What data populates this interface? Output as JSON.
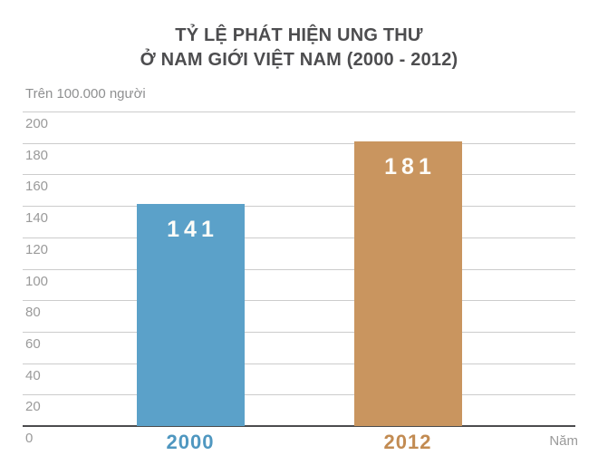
{
  "chart_data": {
    "type": "bar",
    "title_lines": [
      "TỶ LỆ PHÁT HIỆN UNG THƯ",
      "Ở NAM GIỚI VIỆT NAM (2000 - 2012)"
    ],
    "unit_label": "Trên 100.000 người",
    "xlabel": "Năm",
    "categories": [
      "2000",
      "2012"
    ],
    "values": [
      141,
      181
    ],
    "ylim": [
      0,
      200
    ],
    "ytick_step": 20,
    "yticks": [
      0,
      20,
      40,
      60,
      80,
      100,
      120,
      140,
      160,
      180,
      200
    ],
    "grid": true,
    "legend": false,
    "bar_colors": [
      "#5ba1c9",
      "#c9955f"
    ],
    "category_label_colors": [
      "#4f97c0",
      "#c28b52"
    ],
    "value_label_color": "#fdfcf8"
  },
  "colors": {
    "title": "#4d4d4f",
    "axis_text": "#9a9a9a",
    "unit_text": "#8f9091",
    "gridline": "#cccccc",
    "baseline": "#4c4c4e",
    "background": "#ffffff"
  }
}
